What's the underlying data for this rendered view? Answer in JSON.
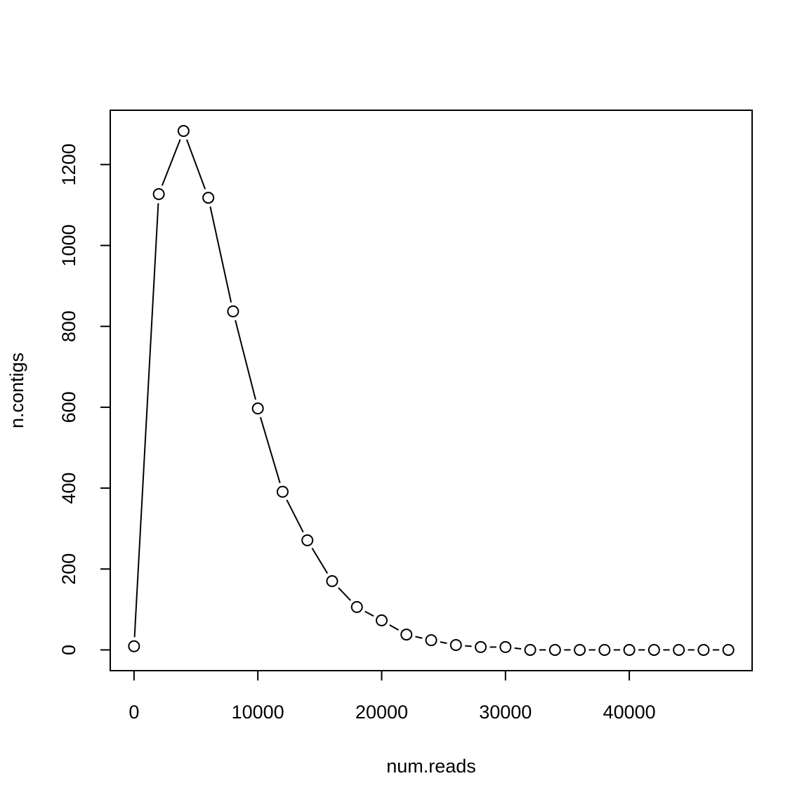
{
  "chart_data": {
    "type": "line",
    "xlabel": "num.reads",
    "ylabel": "n.contigs",
    "series": [
      {
        "name": "n.contigs",
        "color": "#000000",
        "x": [
          0,
          2000,
          4000,
          6000,
          8000,
          10000,
          12000,
          14000,
          16000,
          18000,
          20000,
          22000,
          24000,
          26000,
          28000,
          30000,
          32000,
          34000,
          36000,
          38000,
          40000,
          42000,
          44000,
          46000,
          48000
        ],
        "values": [
          9,
          1127,
          1283,
          1118,
          837,
          597,
          391,
          271,
          170,
          106,
          73,
          38,
          24,
          12,
          7,
          7,
          0,
          0,
          0,
          0,
          0,
          0,
          0,
          0,
          0
        ]
      }
    ],
    "xlim": [
      -1920,
      49920
    ],
    "xticks": [
      0,
      10000,
      20000,
      30000,
      40000
    ],
    "ylim": [
      -51.3,
      1334.3
    ],
    "yticks": [
      0,
      200,
      400,
      600,
      800,
      1000,
      1200
    ],
    "markers": "open-circle",
    "grid": false
  }
}
